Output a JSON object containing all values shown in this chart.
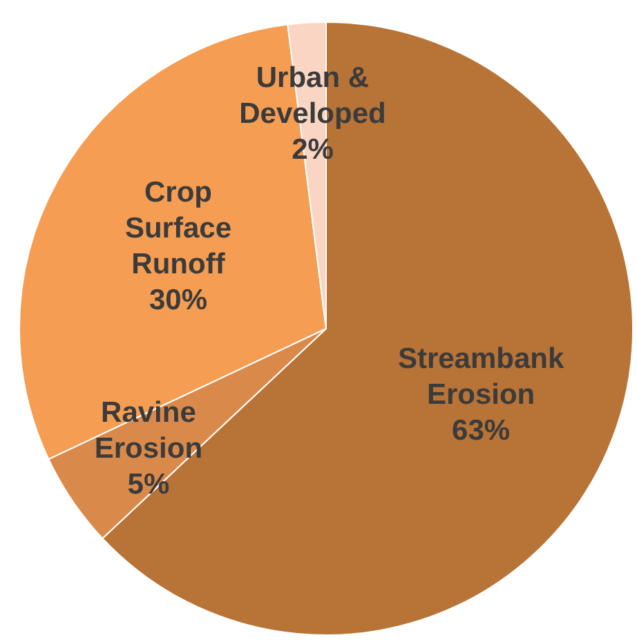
{
  "chart_data": {
    "type": "pie",
    "categories": [
      "Streambank\nErosion",
      "Ravine\nErosion",
      "Crop\nSurface\nRunoff",
      "Urban &\nDeveloped"
    ],
    "values": [
      63,
      5,
      30,
      2
    ],
    "colors": [
      "#b87336",
      "#d98a4b",
      "#f59d52",
      "#fbd5c3"
    ],
    "value_labels": [
      "63%",
      "5%",
      "30%",
      "2%"
    ]
  }
}
